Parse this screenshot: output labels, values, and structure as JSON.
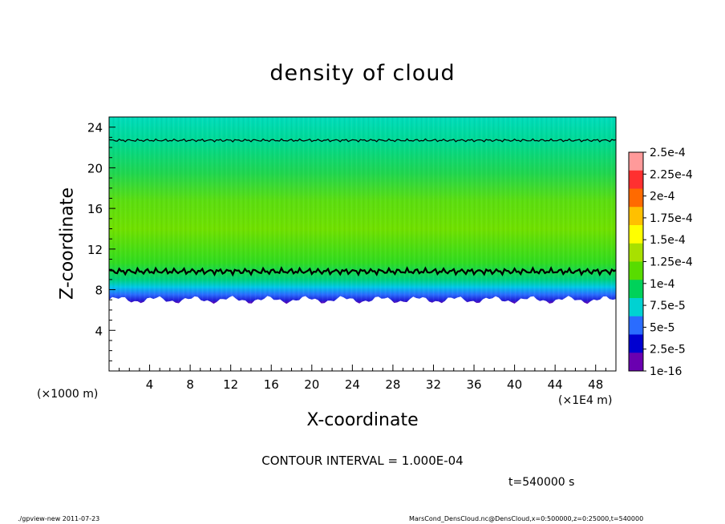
{
  "chart_data": {
    "type": "heatmap",
    "title": "density of cloud",
    "xlabel": "X-coordinate",
    "ylabel": "Z-coordinate",
    "x_unit_note": "(×1000 m)",
    "x_scale_note": "(×1E4 m)",
    "xlim": [
      0,
      50
    ],
    "ylim": [
      0,
      25
    ],
    "x_ticks": [
      4,
      8,
      12,
      16,
      20,
      24,
      28,
      32,
      36,
      40,
      44,
      48
    ],
    "y_ticks": [
      4,
      8,
      12,
      16,
      20,
      24
    ],
    "colorbar": {
      "labels": [
        "2.5e-4",
        "2.25e-4",
        "2e-4",
        "1.75e-4",
        "1.5e-4",
        "1.25e-4",
        "1e-4",
        "7.5e-5",
        "5e-5",
        "2.5e-5",
        "1e-16"
      ],
      "colors": [
        "#ff9a9a",
        "#ff3030",
        "#ff6a00",
        "#ffc000",
        "#ffff00",
        "#a8e000",
        "#58dc00",
        "#00d25a",
        "#00d2d2",
        "#2a6cff",
        "#0000d0",
        "#6a00b0"
      ]
    },
    "contour_interval": "CONTOUR INTERVAL = 1.000E-04",
    "contour_levels_z": [
      9.8,
      22.7
    ],
    "cloud_profile": [
      {
        "z": 7.0,
        "density": 1e-16
      },
      {
        "z": 7.5,
        "density": 1e-05
      },
      {
        "z": 8.0,
        "density": 3e-05
      },
      {
        "z": 8.5,
        "density": 6e-05
      },
      {
        "z": 9.0,
        "density": 8e-05
      },
      {
        "z": 10.0,
        "density": 0.0001
      },
      {
        "z": 12.0,
        "density": 0.000135
      },
      {
        "z": 16.0,
        "density": 0.00015
      },
      {
        "z": 20.0,
        "density": 0.00014
      },
      {
        "z": 22.7,
        "density": 0.0001
      },
      {
        "z": 25.0,
        "density": 8e-05
      }
    ]
  },
  "annotations": {
    "time": "t=540000 s",
    "footer_left": "./gpview-new  2011-07-23",
    "footer_right": "MarsCond_DensCloud.nc@DensCloud,x=0:500000,z=0:25000,t=540000"
  }
}
